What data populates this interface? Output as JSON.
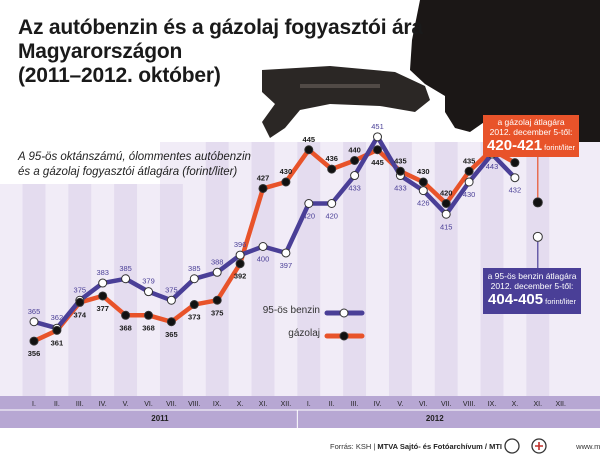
{
  "header": {
    "title_lines": [
      "Az autóbenzin és a gázolaj fogyasztói ára",
      "Magyarországon",
      "(2011–2012. október)"
    ],
    "subtitle_lines": [
      "A 95-ös oktánszámú, ólommentes autóbenzin",
      "és a gázolaj fogyasztói átlagára (forint/liter)"
    ]
  },
  "callouts": {
    "diesel": {
      "label_lines": [
        "a gázolaj átlagára",
        "2012. december 5-től:"
      ],
      "value": "420-421",
      "unit": "forint/liter"
    },
    "benzin": {
      "label_lines": [
        "a 95-ös benzin átlagára",
        "2012. december 5-től:"
      ],
      "value": "404-405",
      "unit": "forint/liter"
    }
  },
  "footer": {
    "source": "Forrás: KSH",
    "agency": "MTVA Sajtó- és Fotóarchívum / MTI",
    "logo_text": "MTI",
    "site": "www.mti.hu"
  },
  "colors": {
    "benzin": "#4a3f97",
    "diesel": "#e8532a",
    "marker_benzin": "#ffffff",
    "marker_diesel": "#111111",
    "band": "#e4dcef",
    "band_light": "#f1ecf7",
    "axis_band": "#b7a7d3",
    "text": "#1a1a1a"
  },
  "chart_data": {
    "type": "line",
    "categories": [
      "I.",
      "II.",
      "III.",
      "IV.",
      "V.",
      "VI.",
      "VII.",
      "VIII.",
      "IX.",
      "X.",
      "XI.",
      "XII.",
      "I.",
      "II.",
      "III.",
      "IV.",
      "V.",
      "VI.",
      "VII.",
      "VIII.",
      "IX.",
      "X.",
      "XI.",
      "XII."
    ],
    "years": [
      {
        "label": "2011",
        "from": 0,
        "to": 11
      },
      {
        "label": "2012",
        "from": 12,
        "to": 23
      }
    ],
    "series": [
      {
        "name": "95-ös benzin",
        "color": "#4a3f97",
        "values": [
          365,
          362,
          375,
          383,
          385,
          379,
          375,
          385,
          388,
          396,
          400,
          397,
          420,
          420,
          433,
          451,
          433,
          426,
          415,
          430,
          443,
          432,
          null,
          null
        ],
        "forecast": {
          "index": 22,
          "value": 404.5
        }
      },
      {
        "name": "gázolaj",
        "color": "#e8532a",
        "values": [
          356,
          361,
          374,
          377,
          368,
          368,
          365,
          373,
          375,
          392,
          427,
          430,
          445,
          436,
          440,
          445,
          435,
          430,
          420,
          435,
          445,
          439,
          null,
          null
        ],
        "forecast": {
          "index": 22,
          "value": 420.5
        }
      }
    ],
    "ylim": [
      340,
      465
    ],
    "grid": false,
    "legend_position": "middle-right",
    "data_labels": true
  }
}
